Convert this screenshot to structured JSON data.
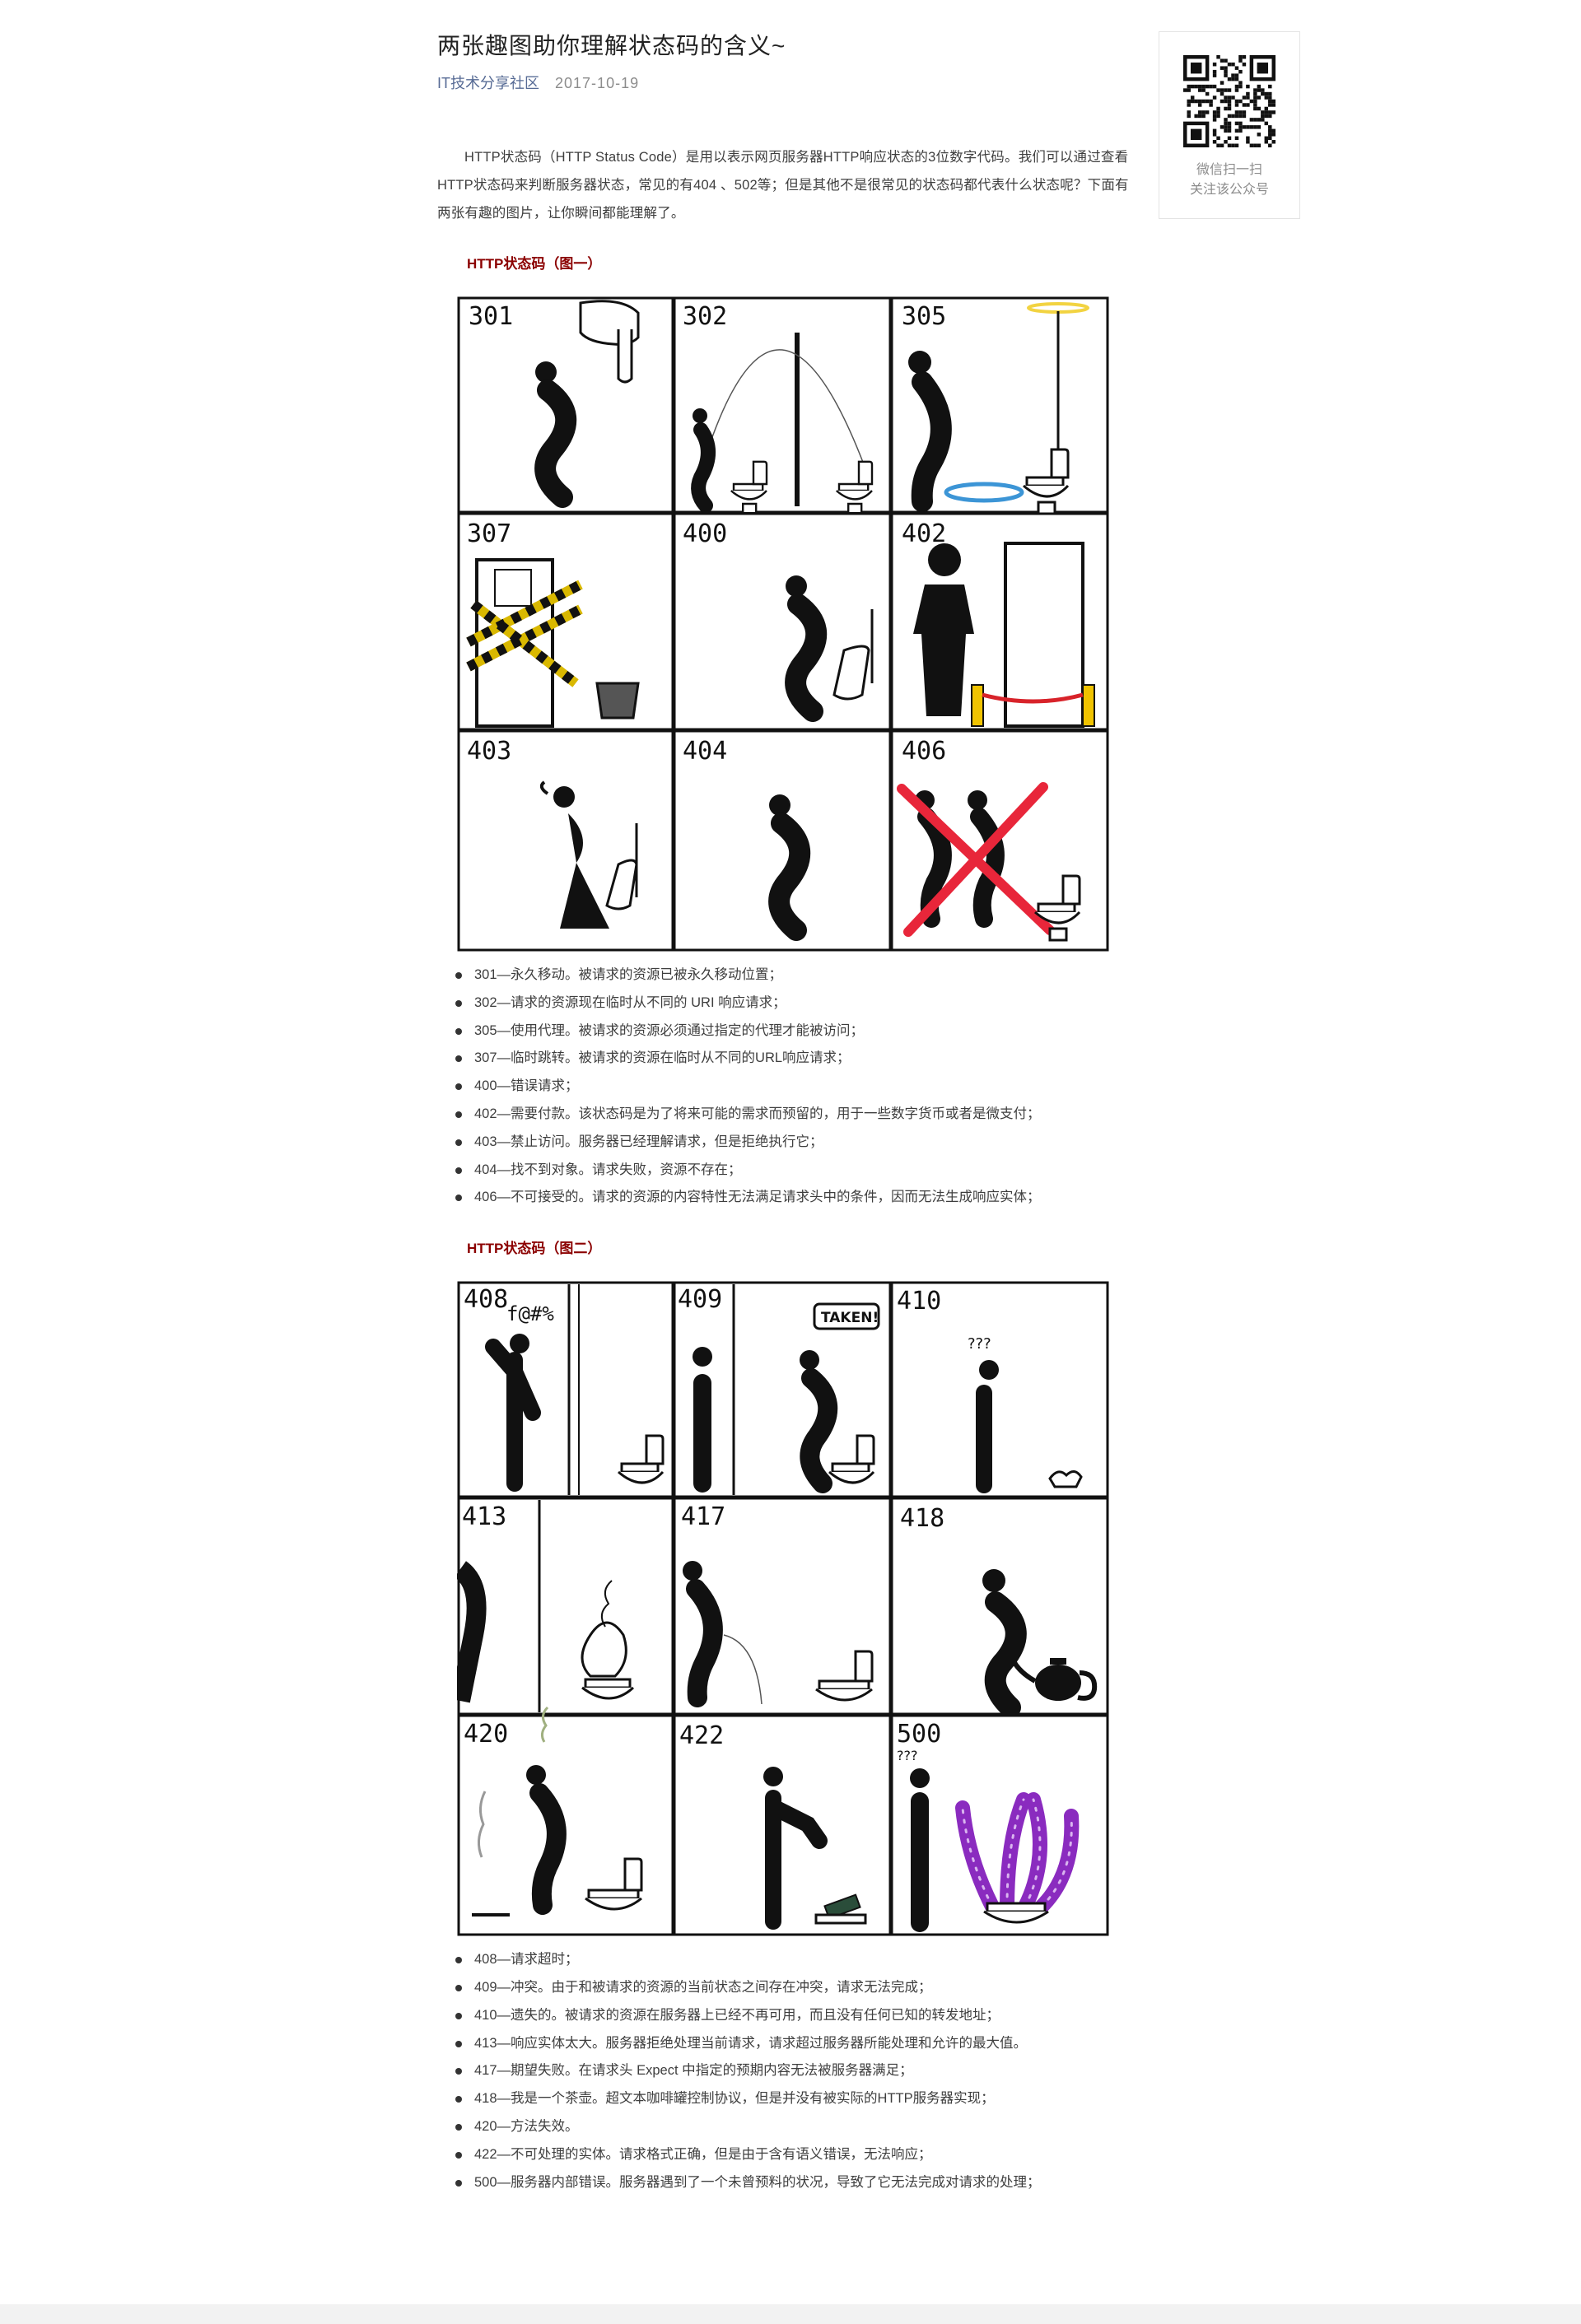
{
  "article": {
    "title": "两张趣图助你理解状态码的含义~",
    "author": "IT技术分享社区",
    "date": "2017-10-19",
    "intro": "HTTP状态码（HTTP Status Code）是用以表示网页服务器HTTP响应状态的3位数字代码。我们可以通过查看HTTP状态码来判断服务器状态，常见的有404 、502等；但是其他不是很常见的状态码都代表什么状态呢？下面有两张有趣的图片，让你瞬间都能理解了。"
  },
  "sections": [
    {
      "heading": "HTTP状态码（图一）",
      "panels": [
        "301",
        "302",
        "305",
        "307",
        "400",
        "402",
        "403",
        "404",
        "406"
      ],
      "items": [
        "301—永久移动。被请求的资源已被永久移动位置；",
        "302—请求的资源现在临时从不同的 URI 响应请求；",
        "305—使用代理。被请求的资源必须通过指定的代理才能被访问；",
        "307—临时跳转。被请求的资源在临时从不同的URL响应请求；",
        "400—错误请求；",
        "402—需要付款。该状态码是为了将来可能的需求而预留的，用于一些数字货币或者是微支付；",
        "403—禁止访问。服务器已经理解请求，但是拒绝执行它；",
        "404—找不到对象。请求失败，资源不存在；",
        "406—不可接受的。请求的资源的内容特性无法满足请求头中的条件，因而无法生成响应实体；"
      ]
    },
    {
      "heading": "HTTP状态码（图二）",
      "panels": [
        "408",
        "409",
        "410",
        "413",
        "417",
        "418",
        "420",
        "422",
        "500"
      ],
      "items": [
        "408—请求超时；",
        "409—冲突。由于和被请求的资源的当前状态之间存在冲突，请求无法完成；",
        "410—遗失的。被请求的资源在服务器上已经不再可用，而且没有任何已知的转发地址；",
        "413—响应实体太大。服务器拒绝处理当前请求，请求超过服务器所能处理和允许的最大值。",
        "417—期望失败。在请求头 Expect 中指定的预期内容无法被服务器满足；",
        "418—我是一个茶壶。超文本咖啡罐控制协议，但是并没有被实际的HTTP服务器实现；",
        "420—方法失效。",
        "422—不可处理的实体。请求格式正确，但是由于含有语义错误，无法响应；",
        "500—服务器内部错误。服务器遇到了一个未曾预料的状况，导致了它无法完成对请求的处理；"
      ]
    }
  ],
  "comic_text": {
    "p408_swear": "f@#%",
    "p409_bubble": "TAKEN!",
    "confused": "???"
  },
  "qr": {
    "caption_line1": "微信扫一扫",
    "caption_line2": "关注该公众号"
  },
  "colors": {
    "author_link": "#576b95",
    "heading": "#8b0000",
    "forbidden_x": "#e8263a",
    "halo": "#f2d341",
    "portal": "#3c95d6",
    "tentacle": "#8a2bbf",
    "barrier_post": "#f0c300",
    "barrier_rope": "#d8232a"
  }
}
